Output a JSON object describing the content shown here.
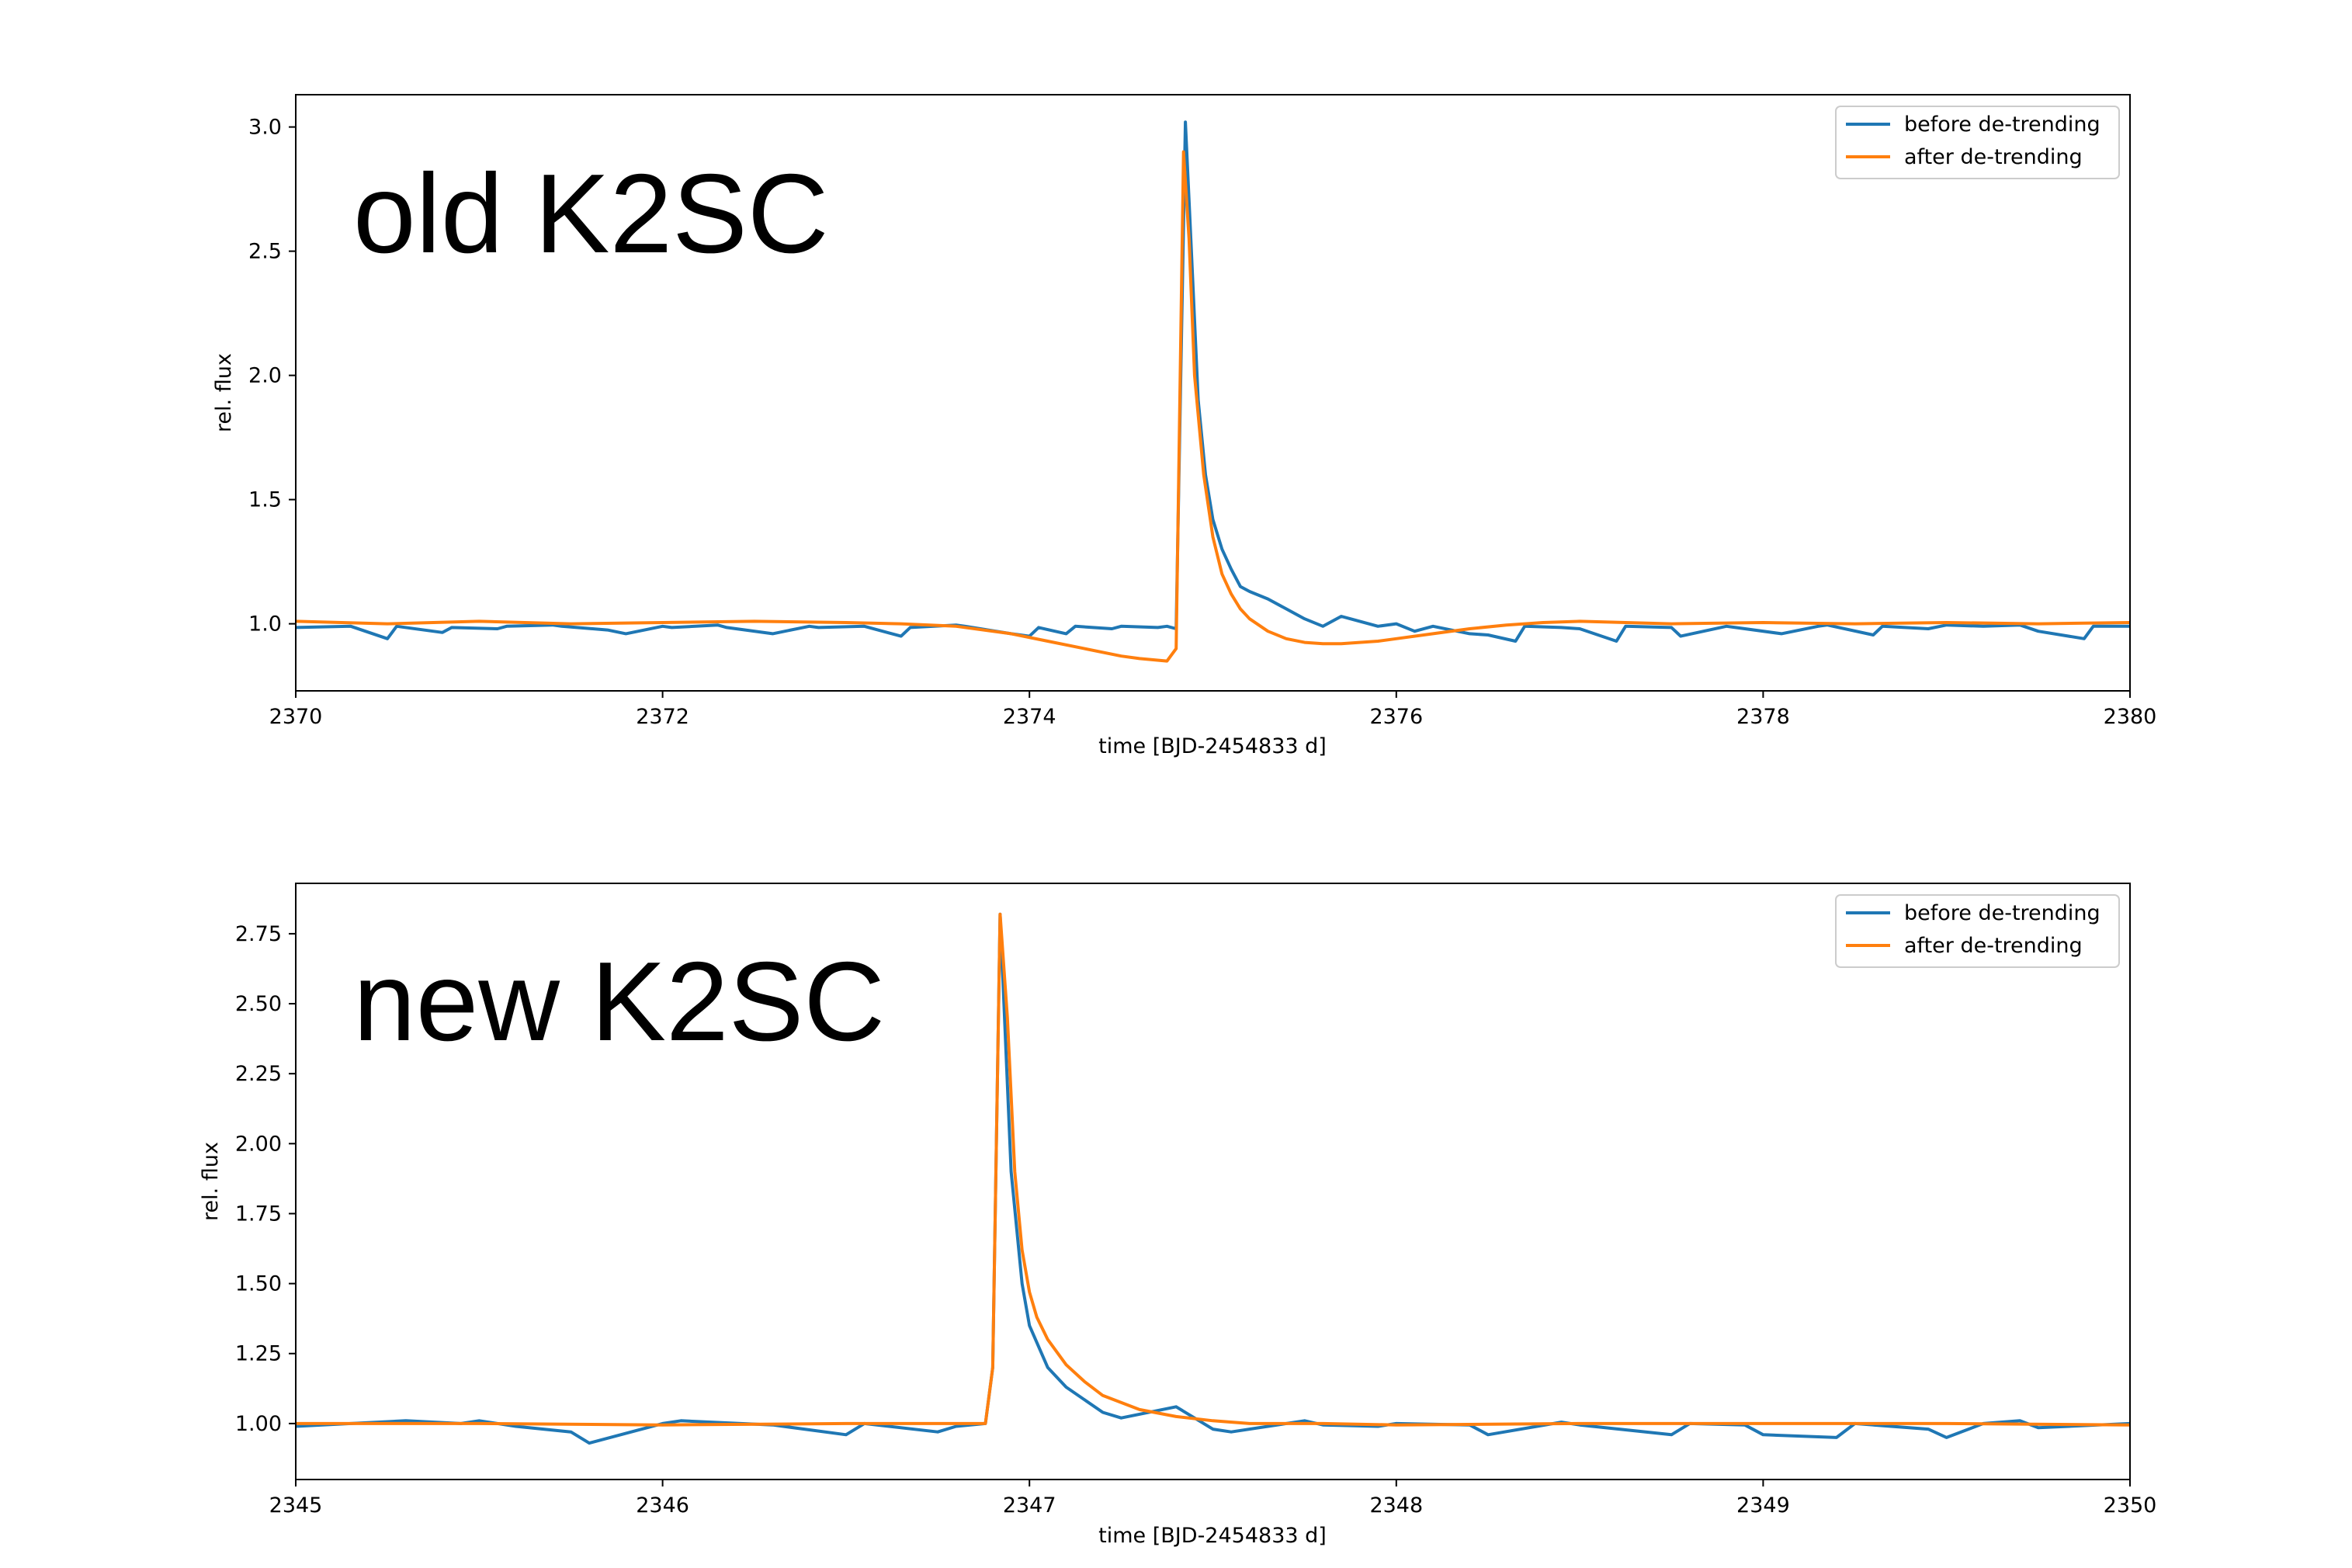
{
  "colors": {
    "before": "#1f77b4",
    "after": "#ff7f0e"
  },
  "chart_data": [
    {
      "type": "line",
      "annotation": "old K2SC",
      "xlabel": "time [BJD-2454833 d]",
      "ylabel": "rel. flux",
      "xlim": [
        2370,
        2380
      ],
      "ylim": [
        0.73,
        3.13
      ],
      "xticks": [
        2370,
        2372,
        2374,
        2376,
        2378,
        2380
      ],
      "xtick_labels": [
        "2370",
        "2372",
        "2374",
        "2376",
        "2378",
        "2380"
      ],
      "yticks": [
        1.0,
        1.5,
        2.0,
        2.5,
        3.0
      ],
      "ytick_labels": [
        "1.0",
        "1.5",
        "2.0",
        "2.5",
        "3.0"
      ],
      "legend_position": "top-right",
      "series": [
        {
          "name": "before de-trending",
          "color": "#1f77b4",
          "x": [
            2370.0,
            2370.3,
            2370.5,
            2370.55,
            2370.8,
            2370.85,
            2371.1,
            2371.15,
            2371.4,
            2371.45,
            2371.7,
            2371.8,
            2372.0,
            2372.05,
            2372.3,
            2372.35,
            2372.6,
            2372.8,
            2372.85,
            2373.1,
            2373.3,
            2373.35,
            2373.6,
            2373.65,
            2373.9,
            2374.0,
            2374.05,
            2374.2,
            2374.25,
            2374.45,
            2374.5,
            2374.7,
            2374.75,
            2374.8,
            2374.85,
            2374.88,
            2374.92,
            2374.96,
            2375.0,
            2375.05,
            2375.1,
            2375.15,
            2375.2,
            2375.3,
            2375.4,
            2375.5,
            2375.6,
            2375.7,
            2375.75,
            2375.9,
            2376.0,
            2376.1,
            2376.2,
            2376.4,
            2376.5,
            2376.65,
            2376.7,
            2376.9,
            2377.0,
            2377.2,
            2377.25,
            2377.5,
            2377.55,
            2377.8,
            2377.85,
            2378.1,
            2378.3,
            2378.35,
            2378.6,
            2378.65,
            2378.9,
            2379.0,
            2379.2,
            2379.4,
            2379.5,
            2379.75,
            2379.8,
            2380.0
          ],
          "values": [
            0.985,
            0.99,
            0.94,
            0.99,
            0.965,
            0.985,
            0.98,
            0.99,
            0.995,
            0.99,
            0.975,
            0.96,
            0.99,
            0.985,
            0.995,
            0.985,
            0.96,
            0.99,
            0.985,
            0.99,
            0.95,
            0.985,
            0.995,
            0.99,
            0.96,
            0.95,
            0.985,
            0.96,
            0.99,
            0.98,
            0.99,
            0.985,
            0.99,
            0.98,
            3.02,
            2.55,
            1.9,
            1.6,
            1.42,
            1.3,
            1.22,
            1.15,
            1.13,
            1.1,
            1.06,
            1.02,
            0.99,
            1.03,
            1.02,
            0.99,
            1.0,
            0.97,
            0.99,
            0.96,
            0.955,
            0.93,
            0.99,
            0.985,
            0.98,
            0.93,
            0.99,
            0.985,
            0.95,
            0.99,
            0.985,
            0.96,
            0.99,
            0.995,
            0.955,
            0.99,
            0.98,
            0.995,
            0.99,
            0.995,
            0.97,
            0.94,
            0.99,
            0.99
          ]
        },
        {
          "name": "after de-trending",
          "color": "#ff7f0e",
          "x": [
            2370.0,
            2370.5,
            2371.0,
            2371.5,
            2372.0,
            2372.5,
            2373.0,
            2373.3,
            2373.6,
            2373.9,
            2374.1,
            2374.3,
            2374.5,
            2374.6,
            2374.75,
            2374.8,
            2374.84,
            2374.87,
            2374.9,
            2374.95,
            2375.0,
            2375.05,
            2375.1,
            2375.15,
            2375.2,
            2375.3,
            2375.4,
            2375.5,
            2375.6,
            2375.7,
            2375.8,
            2375.9,
            2376.0,
            2376.2,
            2376.4,
            2376.6,
            2376.8,
            2377.0,
            2377.5,
            2378.0,
            2378.5,
            2379.0,
            2379.5,
            2380.0
          ],
          "values": [
            1.01,
            1.0,
            1.01,
            1.0,
            1.005,
            1.01,
            1.005,
            1.0,
            0.99,
            0.96,
            0.93,
            0.9,
            0.87,
            0.86,
            0.85,
            0.9,
            2.9,
            2.55,
            2.0,
            1.6,
            1.35,
            1.2,
            1.12,
            1.06,
            1.02,
            0.97,
            0.94,
            0.925,
            0.92,
            0.92,
            0.925,
            0.93,
            0.94,
            0.96,
            0.98,
            0.995,
            1.005,
            1.01,
            1.0,
            1.005,
            1.0,
            1.005,
            1.0,
            1.005
          ]
        }
      ]
    },
    {
      "type": "line",
      "annotation": "new K2SC",
      "xlabel": "time [BJD-2454833 d]",
      "ylabel": "rel. flux",
      "xlim": [
        2345,
        2350
      ],
      "ylim": [
        0.8,
        2.93
      ],
      "xticks": [
        2345,
        2346,
        2347,
        2348,
        2349,
        2350
      ],
      "xtick_labels": [
        "2345",
        "2346",
        "2347",
        "2348",
        "2349",
        "2350"
      ],
      "yticks": [
        1.0,
        1.25,
        1.5,
        1.75,
        2.0,
        2.25,
        2.5,
        2.75
      ],
      "ytick_labels": [
        "1.00",
        "1.25",
        "1.50",
        "1.75",
        "2.00",
        "2.25",
        "2.50",
        "2.75"
      ],
      "legend_position": "top-right",
      "series": [
        {
          "name": "before de-trending",
          "color": "#1f77b4",
          "x": [
            2345.0,
            2345.15,
            2345.3,
            2345.45,
            2345.5,
            2345.6,
            2345.75,
            2345.8,
            2346.0,
            2346.05,
            2346.3,
            2346.5,
            2346.55,
            2346.75,
            2346.8,
            2346.88,
            2346.9,
            2346.92,
            2346.95,
            2346.98,
            2347.0,
            2347.05,
            2347.1,
            2347.2,
            2347.25,
            2347.4,
            2347.5,
            2347.55,
            2347.75,
            2347.8,
            2347.95,
            2348.0,
            2348.2,
            2348.25,
            2348.45,
            2348.5,
            2348.75,
            2348.8,
            2348.95,
            2349.0,
            2349.2,
            2349.25,
            2349.45,
            2349.5,
            2349.6,
            2349.7,
            2349.75,
            2350.0
          ],
          "values": [
            0.99,
            1.0,
            1.01,
            1.0,
            1.01,
            0.99,
            0.97,
            0.93,
            1.0,
            1.01,
            0.995,
            0.96,
            1.0,
            0.97,
            0.99,
            1.0,
            1.2,
            2.82,
            1.9,
            1.5,
            1.35,
            1.2,
            1.13,
            1.04,
            1.02,
            1.06,
            0.98,
            0.97,
            1.01,
            0.995,
            0.99,
            1.0,
            0.995,
            0.96,
            1.005,
            0.995,
            0.96,
            1.0,
            0.995,
            0.96,
            0.95,
            1.0,
            0.98,
            0.95,
            1.0,
            1.01,
            0.985,
            1.0
          ]
        },
        {
          "name": "after de-trending",
          "color": "#ff7f0e",
          "x": [
            2345.0,
            2345.5,
            2346.0,
            2346.5,
            2346.88,
            2346.9,
            2346.92,
            2346.94,
            2346.96,
            2346.98,
            2347.0,
            2347.02,
            2347.05,
            2347.1,
            2347.15,
            2347.2,
            2347.3,
            2347.4,
            2347.5,
            2347.6,
            2347.8,
            2348.0,
            2348.5,
            2349.0,
            2349.5,
            2350.0
          ],
          "values": [
            1.0,
            1.0,
            0.995,
            1.0,
            1.0,
            1.2,
            2.82,
            2.45,
            1.9,
            1.62,
            1.47,
            1.38,
            1.3,
            1.21,
            1.15,
            1.1,
            1.05,
            1.025,
            1.01,
            1.0,
            1.0,
            0.995,
            1.0,
            1.0,
            1.0,
            0.995
          ]
        }
      ]
    }
  ]
}
